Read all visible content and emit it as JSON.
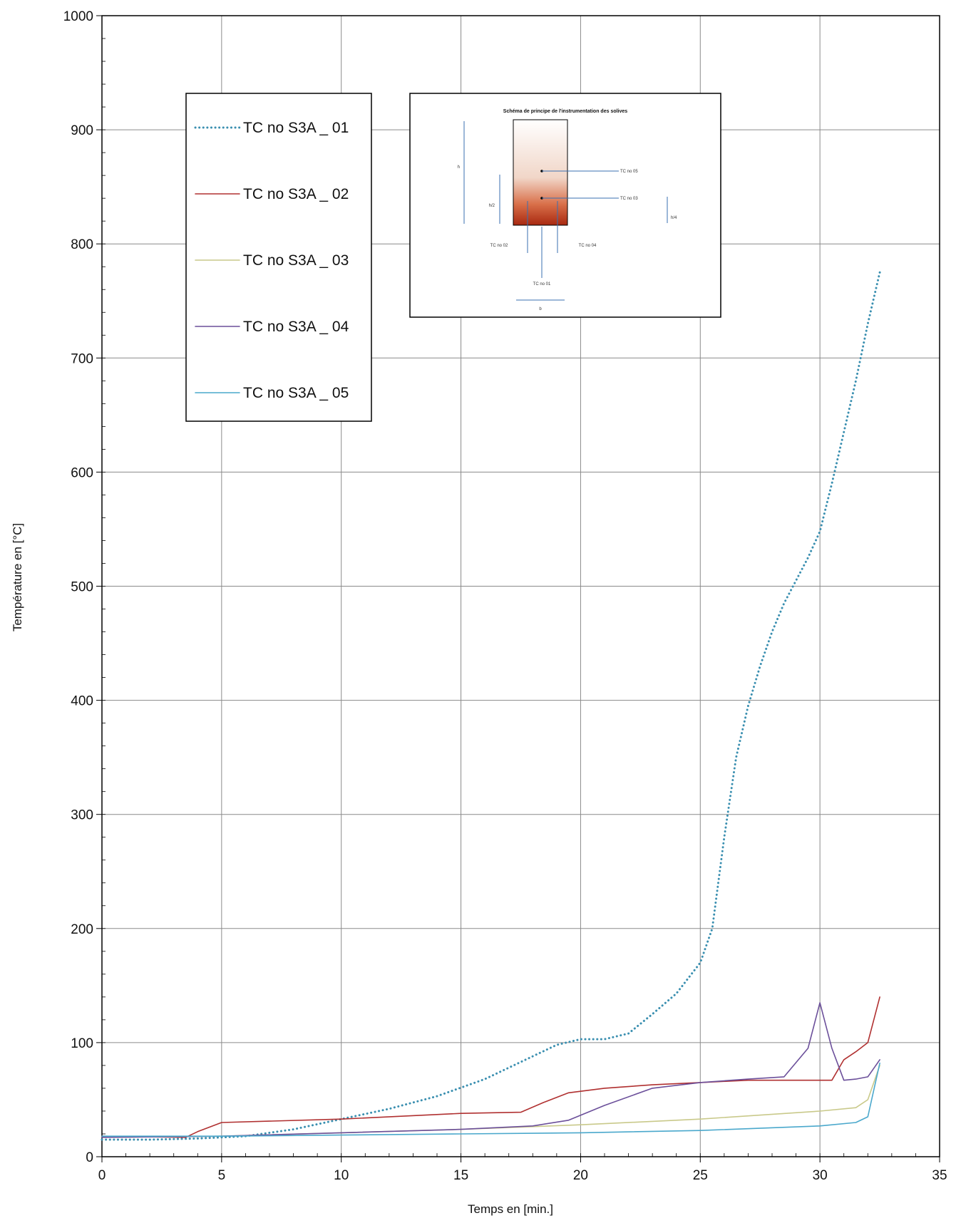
{
  "chart_data": {
    "type": "line",
    "xlabel": "Temps en [min.]",
    "ylabel": "Température en [°C]",
    "xlim": [
      0,
      35
    ],
    "ylim": [
      0,
      1000
    ],
    "xticks": [
      "0",
      "5",
      "10",
      "15",
      "20",
      "25",
      "30",
      "35"
    ],
    "yticks": [
      "0",
      "100",
      "200",
      "300",
      "400",
      "500",
      "600",
      "700",
      "800",
      "900",
      "1000"
    ],
    "grid": true,
    "legend_position": "top-left",
    "series": [
      {
        "name": "TC no S3A _ 01",
        "color": "#3a8fb0",
        "style": "dotted",
        "x": [
          0,
          2,
          4,
          6,
          8,
          10,
          12,
          14,
          16,
          17,
          18,
          19,
          20,
          21,
          22,
          23,
          24,
          25,
          25.5,
          26,
          26.5,
          27,
          27.5,
          28,
          28.5,
          29,
          29.5,
          30,
          30.5,
          31,
          31.5,
          32,
          32.5
        ],
        "y": [
          15,
          15,
          16,
          18,
          24,
          33,
          42,
          53,
          68,
          78,
          88,
          98,
          103,
          103,
          108,
          125,
          143,
          170,
          200,
          280,
          350,
          395,
          430,
          460,
          485,
          505,
          525,
          548,
          590,
          635,
          680,
          730,
          775
        ]
      },
      {
        "name": "TC no S3A _ 02",
        "color": "#b03030",
        "style": "solid",
        "x": [
          0,
          3.5,
          4,
          5,
          10,
          15,
          17.5,
          18.5,
          19.5,
          21,
          23,
          25,
          27,
          29,
          30,
          30.5,
          31,
          31.5,
          32,
          32.5
        ],
        "y": [
          18,
          17,
          22,
          30,
          33,
          38,
          39,
          48,
          56,
          60,
          63,
          65,
          67,
          67,
          67,
          67,
          85,
          92,
          100,
          140
        ]
      },
      {
        "name": "TC no S3A _ 03",
        "color": "#c9c98a",
        "style": "solid",
        "x": [
          0,
          5,
          10,
          15,
          20,
          25,
          30,
          31.5,
          32,
          32.5
        ],
        "y": [
          17,
          18,
          21,
          24,
          28,
          33,
          40,
          43,
          50,
          80
        ]
      },
      {
        "name": "TC no S3A _ 04",
        "color": "#6b4f9a",
        "style": "solid",
        "x": [
          0,
          5,
          10,
          15,
          18,
          19.5,
          21,
          23,
          25,
          27,
          28.5,
          29.5,
          30,
          30.5,
          31,
          31.5,
          32,
          32.5
        ],
        "y": [
          17,
          18,
          21,
          24,
          27,
          32,
          45,
          60,
          65,
          68,
          70,
          95,
          135,
          95,
          67,
          68,
          70,
          85
        ]
      },
      {
        "name": "TC no S3A _ 05",
        "color": "#4aa8cc",
        "style": "solid",
        "x": [
          0,
          5,
          10,
          15,
          20,
          25,
          30,
          31.5,
          32,
          32.5
        ],
        "y": [
          18,
          18,
          19,
          20,
          21,
          23,
          27,
          30,
          35,
          82
        ]
      }
    ]
  },
  "inset": {
    "title": "Schéma de principe de l'instrumentation des solives",
    "labels": [
      "TC no 05",
      "TC no 03",
      "TC no 02",
      "TC no 04",
      "TC no 01",
      "h",
      "h/2",
      "h/4",
      "b"
    ]
  }
}
